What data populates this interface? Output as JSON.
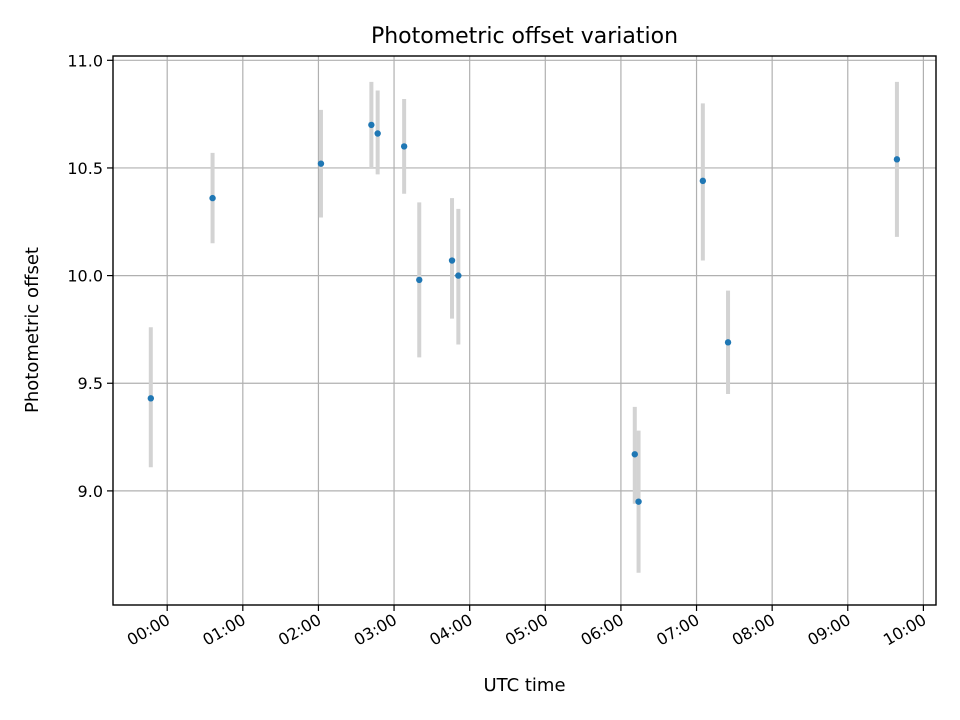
{
  "chart_data": {
    "type": "scatter",
    "title": "Photometric offset variation",
    "xlabel": "UTC time",
    "ylabel": "Photometric offset",
    "x_unit": "UTC time (HH:MM)",
    "xlim": [
      "-00:43",
      "10:10"
    ],
    "ylim": [
      8.47,
      11.02
    ],
    "x_ticks": [
      "00:00",
      "01:00",
      "02:00",
      "03:00",
      "04:00",
      "05:00",
      "06:00",
      "07:00",
      "08:00",
      "09:00",
      "10:00"
    ],
    "y_ticks": [
      9.0,
      9.5,
      10.0,
      10.5,
      11.0
    ],
    "y_tick_labels": [
      "9.0",
      "9.5",
      "10.0",
      "10.5",
      "11.0"
    ],
    "grid": true,
    "legend": "none",
    "point_color": "#1f77b4",
    "errorbar_color": "#d3d3d3",
    "points": [
      {
        "x": "-00:13",
        "y": 9.43,
        "lo": 9.11,
        "hi": 9.76
      },
      {
        "x": "00:36",
        "y": 10.36,
        "lo": 10.15,
        "hi": 10.57
      },
      {
        "x": "02:02",
        "y": 10.52,
        "lo": 10.27,
        "hi": 10.77
      },
      {
        "x": "02:42",
        "y": 10.7,
        "lo": 10.5,
        "hi": 10.9
      },
      {
        "x": "02:47",
        "y": 10.66,
        "lo": 10.47,
        "hi": 10.86
      },
      {
        "x": "03:08",
        "y": 10.6,
        "lo": 10.38,
        "hi": 10.82
      },
      {
        "x": "03:20",
        "y": 9.98,
        "lo": 9.62,
        "hi": 10.34
      },
      {
        "x": "03:46",
        "y": 10.07,
        "lo": 9.8,
        "hi": 10.36
      },
      {
        "x": "03:51",
        "y": 10.0,
        "lo": 9.68,
        "hi": 10.31
      },
      {
        "x": "06:11",
        "y": 9.17,
        "lo": 8.94,
        "hi": 9.39
      },
      {
        "x": "06:14",
        "y": 8.95,
        "lo": 8.62,
        "hi": 9.28
      },
      {
        "x": "07:05",
        "y": 10.44,
        "lo": 10.07,
        "hi": 10.8
      },
      {
        "x": "07:25",
        "y": 9.69,
        "lo": 9.45,
        "hi": 9.93
      },
      {
        "x": "09:39",
        "y": 10.54,
        "lo": 10.18,
        "hi": 10.9
      }
    ]
  }
}
